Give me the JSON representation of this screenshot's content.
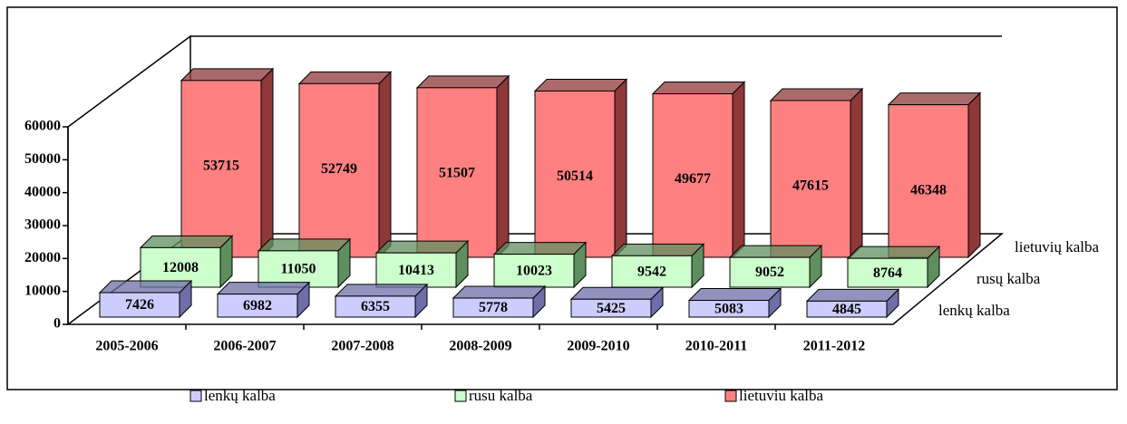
{
  "chart_data": {
    "type": "bar3d",
    "categories": [
      "2005-2006",
      "2006-2007",
      "2007-2008",
      "2008-2009",
      "2009-2010",
      "2010-2011",
      "2011-2012"
    ],
    "depth_categories": [
      "lenkų kalba",
      "rusų kalba",
      "lietuvių kalba"
    ],
    "series": [
      {
        "name": "lenkų kalba",
        "color": "#ccccff",
        "side_color": "#6e6ea8",
        "values": [
          7426,
          6982,
          6355,
          5778,
          5425,
          5083,
          4845
        ]
      },
      {
        "name": "rusu kalba",
        "color": "#ccffcc",
        "side_color": "#5f8f5f",
        "values": [
          12008,
          11050,
          10413,
          10023,
          9542,
          9052,
          8764
        ]
      },
      {
        "name": "lietuviu kalba",
        "color": "#ff8080",
        "side_color": "#8f3838",
        "values": [
          53715,
          52749,
          51507,
          50514,
          49677,
          47615,
          46348
        ]
      }
    ],
    "ylim": [
      0,
      60000
    ],
    "yticks": [
      0,
      10000,
      20000,
      30000,
      40000,
      50000,
      60000
    ],
    "legend": "bottom"
  }
}
